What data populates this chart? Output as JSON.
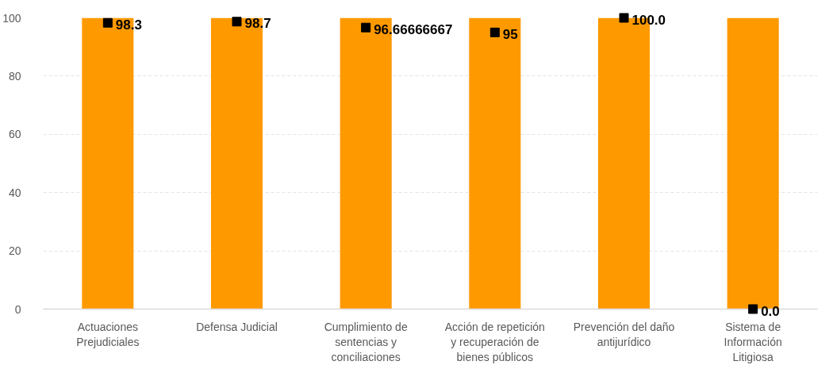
{
  "chart_data": {
    "type": "bar",
    "categories": [
      "Actuaciones Prejudiciales",
      "Defensa Judicial",
      "Cumplimiento de sentencias y conciliaciones",
      "Acción de repetición y recuperación de bienes públicos",
      "Prevención del daño antijurídico",
      "Sistema de Información Litigiosa"
    ],
    "ylim": [
      0,
      100
    ],
    "yticks": [
      0,
      20,
      40,
      60,
      80,
      100
    ],
    "grid": "y",
    "series": [
      {
        "color": "#ff9900",
        "values": [
          100,
          100,
          100,
          100,
          100,
          100
        ]
      },
      {
        "type": "scatter",
        "color": "#000000",
        "marker": "square",
        "values": [
          98.3,
          98.7,
          96.66666667,
          95,
          100.0,
          0.0
        ],
        "value_labels": [
          "98.3",
          "98.7",
          "96.66666667",
          "95",
          "100.0",
          "0.0"
        ]
      }
    ]
  }
}
